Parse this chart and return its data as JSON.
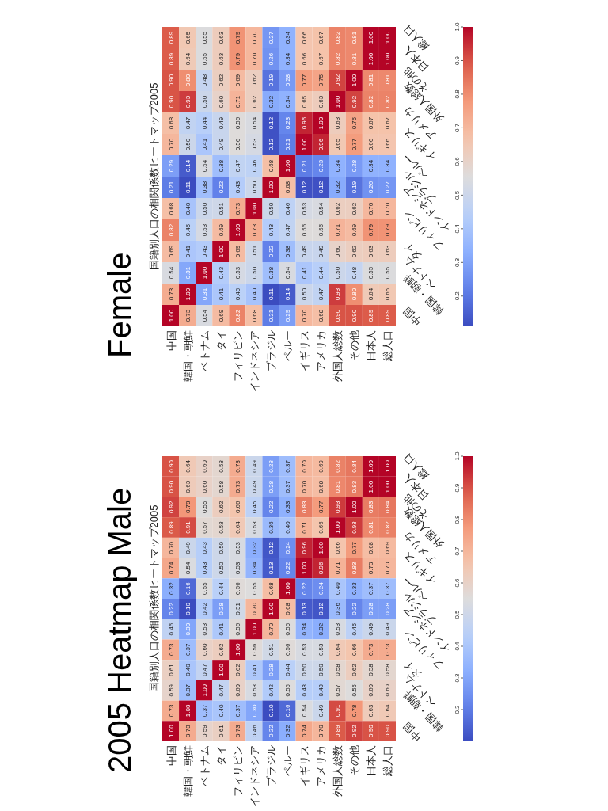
{
  "chart_data": [
    {
      "type": "heatmap",
      "title": "2005 Heatmap Male",
      "subtitle": "国籍別人口の相関係数ヒートマップ2005",
      "categories": [
        "中国",
        "韓国・朝鮮",
        "ベトナム",
        "タイ",
        "フィリピン",
        "インドネシア",
        "ブラジル",
        "ペルー",
        "イギリス",
        "アメリカ",
        "外国人総数",
        "その他",
        "日本人",
        "総人口"
      ],
      "y_categories": [
        "総人口",
        "日本人",
        "その他",
        "外国人総数",
        "アメリカ",
        "イギリス",
        "ペルー",
        "ブラジル",
        "インドネシア",
        "フィリピン",
        "タイ",
        "ベトナム",
        "韓国・朝鮮",
        "中国"
      ],
      "cells": [
        [
          0.9,
          0.64,
          0.6,
          0.58,
          0.73,
          0.49,
          0.28,
          0.37,
          0.7,
          0.69,
          0.82,
          0.84,
          1.0,
          1.0
        ],
        [
          0.9,
          0.63,
          0.6,
          0.58,
          0.73,
          0.49,
          0.28,
          0.37,
          0.7,
          0.68,
          0.81,
          0.83,
          1.0,
          1.0
        ],
        [
          0.92,
          0.78,
          0.55,
          0.62,
          0.66,
          0.45,
          0.22,
          0.33,
          0.83,
          0.77,
          0.93,
          1.0,
          0.83,
          0.84
        ],
        [
          0.89,
          0.91,
          0.57,
          0.58,
          0.64,
          0.53,
          0.36,
          0.4,
          0.71,
          0.66,
          1.0,
          0.93,
          0.81,
          0.82
        ],
        [
          0.7,
          0.49,
          0.43,
          0.5,
          0.53,
          0.32,
          0.12,
          0.24,
          0.96,
          1.0,
          0.66,
          0.77,
          0.68,
          0.69
        ],
        [
          0.74,
          0.54,
          0.43,
          0.5,
          0.53,
          0.34,
          0.13,
          0.22,
          1.0,
          0.96,
          0.71,
          0.83,
          0.7,
          0.7
        ],
        [
          0.32,
          0.16,
          0.55,
          0.44,
          0.56,
          0.55,
          0.68,
          1.0,
          0.22,
          0.24,
          0.4,
          0.33,
          0.37,
          0.37
        ],
        [
          0.22,
          0.1,
          0.42,
          0.28,
          0.51,
          0.7,
          1.0,
          0.68,
          0.13,
          0.12,
          0.36,
          0.22,
          0.28,
          0.28
        ],
        [
          0.46,
          0.3,
          0.53,
          0.41,
          0.56,
          1.0,
          0.7,
          0.55,
          0.34,
          0.32,
          0.53,
          0.45,
          0.49,
          0.49
        ],
        [
          0.73,
          0.37,
          0.6,
          0.62,
          1.0,
          0.56,
          0.51,
          0.56,
          0.53,
          0.53,
          0.64,
          0.66,
          0.73,
          0.73
        ],
        [
          0.61,
          0.4,
          0.47,
          1.0,
          0.62,
          0.41,
          0.28,
          0.44,
          0.5,
          0.5,
          0.58,
          0.62,
          0.58,
          0.58
        ],
        [
          0.59,
          0.37,
          1.0,
          0.47,
          0.6,
          0.53,
          0.42,
          0.55,
          0.43,
          0.43,
          0.57,
          0.55,
          0.6,
          0.6
        ],
        [
          0.73,
          1.0,
          0.37,
          0.4,
          0.37,
          0.3,
          0.1,
          0.16,
          0.54,
          0.49,
          0.91,
          0.78,
          0.63,
          0.64
        ],
        [
          1.0,
          0.73,
          0.59,
          0.61,
          0.73,
          0.46,
          0.22,
          0.32,
          0.74,
          0.7,
          0.89,
          0.92,
          0.9,
          0.9
        ]
      ],
      "cell_labels": [
        [
          "0.90",
          "0.64",
          "0.60",
          "0.58",
          "0.73",
          "0.49",
          "0.28",
          "0.37",
          "0.70",
          "0.69",
          "0.82",
          "0.84",
          "1.00",
          "1.00"
        ],
        [
          "0.90",
          "0.63",
          "0.60",
          "0.58",
          "0.73",
          "0.49",
          "0.28",
          "0.37",
          "0.70",
          "0.68",
          "0.81",
          "0.83",
          "1.00",
          "1.00"
        ],
        [
          "0.92",
          "0.78",
          "0.55",
          "0.62",
          "0.66",
          "0.45",
          "0.22",
          "0.33",
          "0.83",
          "0.77",
          "0.93",
          "1.00",
          "0.83",
          "0.84"
        ],
        [
          "0.89",
          "0.91",
          "0.57",
          "0.58",
          "0.64",
          "0.53",
          "0.36",
          "0.40",
          "0.71",
          "0.66",
          "1.00",
          "0.93",
          "0.81",
          "0.82"
        ],
        [
          "0.70",
          "0.49",
          "0.43",
          "0.50",
          "0.53",
          "0.32",
          "0.12",
          "0.24",
          "0.96",
          "1.00",
          "0.66",
          "0.77",
          "0.68",
          "0.69"
        ],
        [
          "0.74",
          "0.54",
          "0.43",
          "0.50",
          "0.53",
          "0.34",
          "0.13",
          "0.22",
          "1.00",
          "0.96",
          "0.71",
          "0.83",
          "0.70",
          "0.70"
        ],
        [
          "0.32",
          "0.16",
          "0.55",
          "0.44",
          "0.56",
          "0.55",
          "0.68",
          "1.00",
          "0.22",
          "0.24",
          "0.40",
          "0.33",
          "0.37",
          "0.37"
        ],
        [
          "0.22",
          "0.10",
          "0.42",
          "0.28",
          "0.51",
          "0.70",
          "1.00",
          "0.68",
          "0.13",
          "0.12",
          "0.36",
          "0.22",
          "0.28",
          "0.28"
        ],
        [
          "0.46",
          "0.30",
          "0.53",
          "0.41",
          "0.56",
          "1.00",
          "0.70",
          "0.55",
          "0.34",
          "0.32",
          "0.53",
          "0.45",
          "0.49",
          "0.49"
        ],
        [
          "0.73",
          "0.37",
          "0.60",
          "0.62",
          "1.00",
          "0.56",
          "0.51",
          "0.56",
          "0.53",
          "0.53",
          "0.64",
          "0.66",
          "0.73",
          "0.73"
        ],
        [
          "0.61",
          "0.40",
          "0.47",
          "1.00",
          "0.62",
          "0.41",
          "0.28",
          "0.44",
          "0.50",
          "0.50",
          "0.58",
          "0.62",
          "0.58",
          "0.58"
        ],
        [
          "0.59",
          "0.37",
          "1.00",
          "0.47",
          "0.60",
          "0.53",
          "0.42",
          "0.55",
          "0.43",
          "0.43",
          "0.57",
          "0.55",
          "0.60",
          "0.60"
        ],
        [
          "0.73",
          "1.00",
          "0.37",
          "0.40",
          "0.37",
          "0.30",
          "0.10",
          "0.16",
          "0.54",
          "0.49",
          "0.91",
          "0.78",
          "0.63",
          "0.64"
        ],
        [
          "1.00",
          "0.73",
          "0.59",
          "0.61",
          "0.73",
          "0.46",
          "0.22",
          "0.32",
          "0.74",
          "0.70",
          "0.89",
          "0.92",
          "0.90",
          "0.90"
        ]
      ],
      "data_labels": true,
      "clim": [
        0.1,
        1.0
      ],
      "cticks": [
        0.2,
        0.3,
        0.4,
        0.5,
        0.6,
        0.7,
        0.8,
        0.9,
        {
          "value": 1.0,
          "label": "1.0"
        }
      ]
    },
    {
      "type": "heatmap",
      "title": "Female",
      "subtitle": "国籍別人口の相関係数ヒートマップ2005",
      "categories": [
        "中国",
        "韓国・朝鮮",
        "ベトナム",
        "タイ",
        "フィリピン",
        "インドネシア",
        "ブラジル",
        "ペルー",
        "イギリス",
        "アメリカ",
        "外国人総数",
        "その他",
        "日本人",
        "総人口"
      ],
      "y_categories": [
        "総人口",
        "日本人",
        "その他",
        "外国人総数",
        "アメリカ",
        "イギリス",
        "ペルー",
        "ブラジル",
        "インドネシア",
        "フィリピン",
        "タイ",
        "ベトナム",
        "韓国・朝鮮",
        "中国"
      ],
      "cells": [
        [
          0.89,
          0.65,
          0.55,
          0.63,
          0.79,
          0.7,
          0.27,
          0.34,
          0.66,
          0.67,
          0.82,
          0.81,
          1.0,
          1.0
        ],
        [
          0.89,
          0.64,
          0.55,
          0.63,
          0.79,
          0.7,
          0.26,
          0.34,
          0.66,
          0.67,
          0.82,
          0.81,
          1.0,
          1.0
        ],
        [
          0.9,
          0.8,
          0.48,
          0.62,
          0.69,
          0.62,
          0.19,
          0.28,
          0.77,
          0.75,
          0.92,
          1.0,
          0.81,
          0.81
        ],
        [
          0.9,
          0.93,
          0.5,
          0.6,
          0.71,
          0.62,
          0.32,
          0.34,
          0.65,
          0.63,
          1.0,
          0.92,
          0.82,
          0.82
        ],
        [
          0.68,
          0.47,
          0.44,
          0.49,
          0.56,
          0.54,
          0.12,
          0.23,
          0.96,
          1.0,
          0.63,
          0.75,
          0.67,
          0.67
        ],
        [
          0.7,
          0.5,
          0.41,
          0.49,
          0.56,
          0.53,
          0.12,
          0.21,
          1.0,
          0.96,
          0.65,
          0.77,
          0.66,
          0.66
        ],
        [
          0.29,
          0.14,
          0.54,
          0.38,
          0.47,
          0.46,
          0.68,
          1.0,
          0.21,
          0.23,
          0.34,
          0.28,
          0.34,
          0.34
        ],
        [
          0.21,
          0.11,
          0.38,
          0.22,
          0.43,
          0.5,
          1.0,
          0.68,
          0.12,
          0.12,
          0.32,
          0.19,
          0.26,
          0.27
        ],
        [
          0.68,
          0.4,
          0.5,
          0.51,
          0.73,
          1.0,
          0.5,
          0.46,
          0.53,
          0.54,
          0.62,
          0.62,
          0.7,
          0.7
        ],
        [
          0.82,
          0.45,
          0.53,
          0.69,
          1.0,
          0.73,
          0.43,
          0.47,
          0.56,
          0.56,
          0.71,
          0.69,
          0.79,
          0.79
        ],
        [
          0.69,
          0.41,
          0.43,
          1.0,
          0.69,
          0.51,
          0.22,
          0.38,
          0.49,
          0.49,
          0.6,
          0.62,
          0.63,
          0.63
        ],
        [
          0.54,
          0.31,
          1.0,
          0.43,
          0.53,
          0.5,
          0.38,
          0.54,
          0.41,
          0.44,
          0.5,
          0.48,
          0.55,
          0.55
        ],
        [
          0.73,
          1.0,
          0.31,
          0.41,
          0.45,
          0.4,
          0.11,
          0.14,
          0.5,
          0.47,
          0.93,
          0.8,
          0.64,
          0.65
        ],
        [
          1.0,
          0.73,
          0.54,
          0.69,
          0.82,
          0.68,
          0.21,
          0.29,
          0.7,
          0.68,
          0.9,
          0.9,
          0.89,
          0.89
        ]
      ],
      "cell_labels": [
        [
          "0.89",
          "0.65",
          "0.55",
          "0.63",
          "0.79",
          "0.70",
          "0.27",
          "0.34",
          "0.66",
          "0.67",
          "0.82",
          "0.81",
          "1.00",
          "1.00"
        ],
        [
          "0.89",
          "0.64",
          "0.55",
          "0.63",
          "0.79",
          "0.70",
          "0.26",
          "0.34",
          "0.66",
          "0.67",
          "0.82",
          "0.81",
          "1.00",
          "1.00"
        ],
        [
          "0.90",
          "0.80",
          "0.48",
          "0.62",
          "0.69",
          "0.62",
          "0.19",
          "0.28",
          "0.77",
          "0.75",
          "0.92",
          "1.00",
          "0.81",
          "0.81"
        ],
        [
          "0.90",
          "0.93",
          "0.50",
          "0.60",
          "0.71",
          "0.62",
          "0.32",
          "0.34",
          "0.65",
          "0.63",
          "1.00",
          "0.92",
          "0.82",
          "0.82"
        ],
        [
          "0.68",
          "0.47",
          "0.44",
          "0.49",
          "0.56",
          "0.54",
          "0.12",
          "0.23",
          "0.96",
          "1.00",
          "0.63",
          "0.75",
          "0.67",
          "0.67"
        ],
        [
          "0.70",
          "0.50",
          "0.41",
          "0.49",
          "0.56",
          "0.53",
          "0.12",
          "0.21",
          "1.00",
          "0.96",
          "0.65",
          "0.77",
          "0.66",
          "0.66"
        ],
        [
          "0.29",
          "0.14",
          "0.54",
          "0.38",
          "0.47",
          "0.46",
          "0.68",
          "1.00",
          "0.21",
          "0.23",
          "0.34",
          "0.28",
          "0.34",
          "0.34"
        ],
        [
          "0.21",
          "0.11",
          "0.38",
          "0.22",
          "0.43",
          "0.50",
          "1.00",
          "0.68",
          "0.12",
          "0.12",
          "0.32",
          "0.19",
          "0.26",
          "0.27"
        ],
        [
          "0.68",
          "0.40",
          "0.50",
          "0.51",
          "0.73",
          "1.00",
          "0.50",
          "0.46",
          "0.53",
          "0.54",
          "0.62",
          "0.62",
          "0.70",
          "0.70"
        ],
        [
          "0.82",
          "0.45",
          "0.53",
          "0.69",
          "1.00",
          "0.73",
          "0.43",
          "0.47",
          "0.56",
          "0.56",
          "0.71",
          "0.69",
          "0.79",
          "0.79"
        ],
        [
          "0.69",
          "0.41",
          "0.43",
          "1.00",
          "0.69",
          "0.51",
          "0.22",
          "0.38",
          "0.49",
          "0.49",
          "0.60",
          "0.62",
          "0.63",
          "0.63"
        ],
        [
          "0.54",
          "0.31",
          "1.00",
          "0.43",
          "0.53",
          "0.50",
          "0.38",
          "0.54",
          "0.41",
          "0.44",
          "0.50",
          "0.48",
          "0.55",
          "0.55"
        ],
        [
          "0.73",
          "1.00",
          "0.31",
          "0.41",
          "0.45",
          "0.40",
          "0.11",
          "0.14",
          "0.50",
          "0.47",
          "0.93",
          "0.80",
          "0.64",
          "0.65"
        ],
        [
          "1.00",
          "0.73",
          "0.54",
          "0.69",
          "0.82",
          "0.68",
          "0.21",
          "0.29",
          "0.70",
          "0.68",
          "0.90",
          "0.90",
          "0.89",
          "0.89"
        ]
      ],
      "data_labels": true,
      "clim": [
        0.11,
        1.0
      ],
      "cticks": [
        0.2,
        0.3,
        0.4,
        0.5,
        0.6,
        0.7,
        0.8,
        0.9,
        {
          "value": 1.0,
          "label": "1.0"
        }
      ]
    }
  ]
}
